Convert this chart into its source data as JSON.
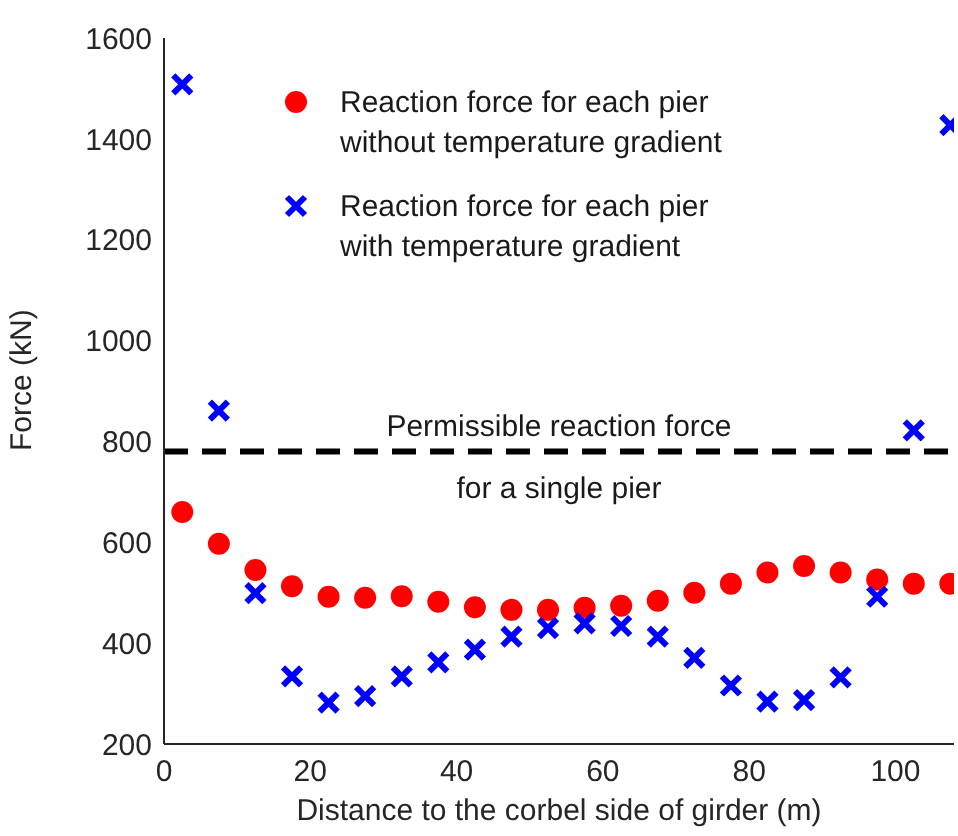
{
  "chart_data": {
    "type": "scatter",
    "xlabel": "Distance to the corbel side of girder (m)",
    "ylabel": "Force (kN)",
    "x": [
      2.5,
      7.5,
      12.5,
      17.5,
      22.5,
      27.5,
      32.5,
      37.5,
      42.5,
      47.5,
      52.5,
      57.5,
      62.5,
      67.5,
      72.5,
      77.5,
      82.5,
      87.5,
      92.5,
      97.5,
      102.5,
      107.5
    ],
    "series": [
      {
        "name": "Reaction force for each pier without temperature gradient",
        "color": "#ff0000",
        "marker": "circle",
        "values": [
          660,
          597,
          545,
          513,
          492,
          490,
          493,
          482,
          471,
          466,
          466,
          470,
          474,
          484,
          500,
          518,
          540,
          553,
          540,
          526,
          518,
          518
        ]
      },
      {
        "name": "Reaction force for each pier with temperature gradient",
        "color": "#0000ff",
        "marker": "cross",
        "values": [
          1508,
          861,
          499,
          334,
          282,
          295,
          334,
          362,
          387,
          413,
          430,
          439,
          434,
          413,
          371,
          316,
          284,
          287,
          332,
          492,
          822,
          1427
        ]
      }
    ],
    "xlim": [
      0,
      108
    ],
    "xticks": [
      0,
      20,
      40,
      60,
      80,
      100
    ],
    "ylim": [
      200,
      1600
    ],
    "yticks": [
      200,
      400,
      600,
      800,
      1000,
      1200,
      1400,
      1600
    ],
    "ref_lines": [
      {
        "axis": "y",
        "value": 780,
        "label": "Permissible reaction force\nfor a single pier",
        "color": "#000000",
        "line_style": "dashed"
      }
    ],
    "legend": "top",
    "grid": false
  }
}
